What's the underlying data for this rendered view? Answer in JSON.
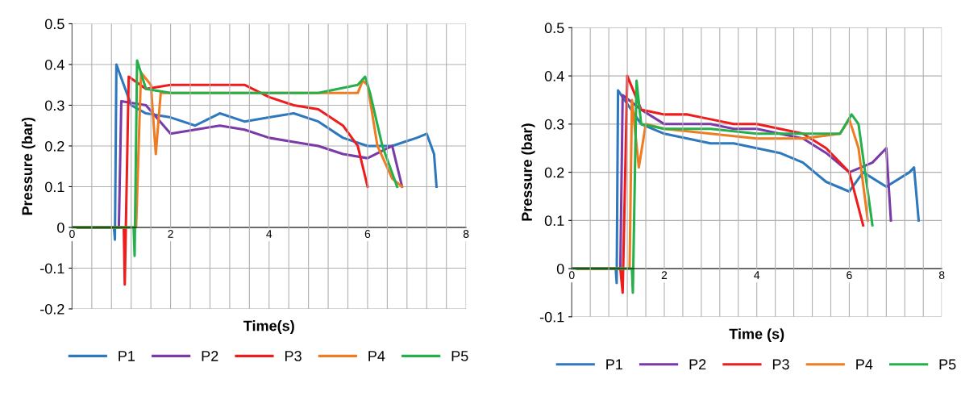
{
  "chart_data": [
    {
      "type": "line",
      "xlabel": "Time(s)",
      "ylabel": "Pressure (bar)",
      "xlim": [
        0,
        8
      ],
      "ylim": [
        -0.2,
        0.5
      ],
      "xticks": [
        0,
        {
          "value": 0.4,
          "label": null
        },
        {
          "value": 0.8,
          "label": null
        },
        {
          "value": 1.2,
          "label": null
        },
        {
          "value": 1.6,
          "label": null
        },
        2,
        {
          "value": 2.4,
          "label": null
        },
        {
          "value": 2.8,
          "label": null
        },
        {
          "value": 3.2,
          "label": null
        },
        {
          "value": 3.6,
          "label": null
        },
        4,
        {
          "value": 4.4,
          "label": null
        },
        {
          "value": 4.8,
          "label": null
        },
        {
          "value": 5.2,
          "label": null
        },
        {
          "value": 5.6,
          "label": null
        },
        6,
        {
          "value": 6.4,
          "label": null
        },
        {
          "value": 6.8,
          "label": null
        },
        {
          "value": 7.2,
          "label": null
        },
        {
          "value": 7.6,
          "label": null
        },
        8
      ],
      "yticks": [
        -0.2,
        -0.1,
        0,
        0.1,
        0.2,
        0.3,
        0.4,
        0.5
      ],
      "grid": true,
      "legend": "bottom",
      "marker": "none",
      "line_style": "solid",
      "series": [
        {
          "name": "P1",
          "color": "#2e78bd",
          "x": [
            0,
            0.85,
            0.87,
            0.9,
            1.2,
            1.5,
            2,
            2.5,
            3,
            3.5,
            4,
            4.5,
            5,
            5.5,
            6,
            6.5,
            7,
            7.2,
            7.35,
            7.4
          ],
          "values": [
            0,
            0,
            -0.03,
            0.4,
            0.3,
            0.28,
            0.27,
            0.25,
            0.28,
            0.26,
            0.27,
            0.28,
            0.26,
            0.22,
            0.2,
            0.2,
            0.22,
            0.23,
            0.18,
            0.1
          ]
        },
        {
          "name": "P2",
          "color": "#7a3aa8",
          "x": [
            0,
            0.95,
            1.0,
            1.5,
            2,
            2.5,
            3,
            3.5,
            4,
            4.5,
            5,
            5.5,
            6,
            6.5,
            6.7
          ],
          "values": [
            0,
            0,
            0.31,
            0.3,
            0.23,
            0.24,
            0.25,
            0.24,
            0.22,
            0.21,
            0.2,
            0.18,
            0.17,
            0.2,
            0.1
          ]
        },
        {
          "name": "P3",
          "color": "#ee1c1c",
          "x": [
            0,
            1.05,
            1.07,
            1.15,
            1.5,
            2,
            2.5,
            3,
            3.5,
            4,
            4.5,
            5,
            5.5,
            5.8,
            6
          ],
          "values": [
            0,
            0,
            -0.14,
            0.37,
            0.34,
            0.35,
            0.35,
            0.35,
            0.35,
            0.32,
            0.3,
            0.29,
            0.25,
            0.2,
            0.1
          ]
        },
        {
          "name": "P4",
          "color": "#f07c22",
          "x": [
            0,
            1.3,
            1.4,
            1.6,
            1.7,
            1.8,
            2,
            3,
            4,
            5,
            5.8,
            5.9,
            6.0,
            6.2,
            6.5,
            6.7
          ],
          "values": [
            0,
            0,
            0.38,
            0.35,
            0.18,
            0.33,
            0.33,
            0.33,
            0.33,
            0.33,
            0.33,
            0.36,
            0.35,
            0.2,
            0.12,
            0.1
          ]
        },
        {
          "name": "P5",
          "color": "#25b04b",
          "x": [
            0,
            1.25,
            1.27,
            1.32,
            1.5,
            2,
            3,
            4,
            5,
            5.8,
            5.95,
            6.05,
            6.3,
            6.6
          ],
          "values": [
            0,
            0,
            -0.07,
            0.41,
            0.34,
            0.33,
            0.33,
            0.33,
            0.33,
            0.35,
            0.37,
            0.33,
            0.2,
            0.1
          ]
        }
      ]
    },
    {
      "type": "line",
      "xlabel": "Time (s)",
      "ylabel": "Pressure (bar)",
      "xlim": [
        0,
        8
      ],
      "ylim": [
        -0.1,
        0.5
      ],
      "xticks": [
        0,
        {
          "value": 0.4,
          "label": null
        },
        {
          "value": 0.8,
          "label": null
        },
        {
          "value": 1.2,
          "label": null
        },
        {
          "value": 1.6,
          "label": null
        },
        2,
        {
          "value": 2.4,
          "label": null
        },
        {
          "value": 2.8,
          "label": null
        },
        {
          "value": 3.2,
          "label": null
        },
        {
          "value": 3.6,
          "label": null
        },
        4,
        {
          "value": 4.4,
          "label": null
        },
        {
          "value": 4.8,
          "label": null
        },
        {
          "value": 5.2,
          "label": null
        },
        {
          "value": 5.6,
          "label": null
        },
        6,
        {
          "value": 6.4,
          "label": null
        },
        {
          "value": 6.8,
          "label": null
        },
        {
          "value": 7.2,
          "label": null
        },
        {
          "value": 7.6,
          "label": null
        },
        8
      ],
      "yticks": [
        -0.1,
        0,
        0.1,
        0.2,
        0.3,
        0.4,
        0.5
      ],
      "grid": true,
      "legend": "bottom",
      "marker": "none",
      "line_style": "solid",
      "series": [
        {
          "name": "P1",
          "color": "#2e78bd",
          "x": [
            0,
            0.95,
            0.97,
            1.0,
            1.5,
            2,
            2.5,
            3,
            3.5,
            4,
            4.5,
            5,
            5.5,
            6,
            6.3,
            6.8,
            7.3,
            7.4,
            7.5
          ],
          "values": [
            0,
            0,
            -0.03,
            0.37,
            0.3,
            0.28,
            0.27,
            0.26,
            0.26,
            0.25,
            0.24,
            0.22,
            0.18,
            0.16,
            0.2,
            0.17,
            0.2,
            0.21,
            0.1
          ]
        },
        {
          "name": "P2",
          "color": "#7a3aa8",
          "x": [
            0,
            1.05,
            1.1,
            1.5,
            2,
            2.5,
            3,
            3.5,
            4,
            4.5,
            5,
            5.5,
            6,
            6.5,
            6.8,
            6.9
          ],
          "values": [
            0,
            0,
            0.36,
            0.33,
            0.3,
            0.3,
            0.3,
            0.29,
            0.29,
            0.28,
            0.27,
            0.24,
            0.2,
            0.22,
            0.25,
            0.1
          ]
        },
        {
          "name": "P3",
          "color": "#ee1c1c",
          "x": [
            0,
            1.05,
            1.1,
            1.2,
            1.5,
            2,
            2.5,
            3,
            3.5,
            4,
            4.5,
            5,
            5.5,
            6,
            6.3
          ],
          "values": [
            0,
            0,
            -0.05,
            0.4,
            0.33,
            0.32,
            0.32,
            0.31,
            0.3,
            0.3,
            0.29,
            0.28,
            0.25,
            0.2,
            0.09
          ]
        },
        {
          "name": "P4",
          "color": "#f07c22",
          "x": [
            0,
            1.25,
            1.3,
            1.45,
            1.6,
            2,
            3,
            4,
            5,
            5.8,
            6,
            6.2,
            6.4
          ],
          "values": [
            0,
            0,
            0.35,
            0.21,
            0.3,
            0.29,
            0.28,
            0.27,
            0.27,
            0.28,
            0.31,
            0.25,
            0.1
          ]
        },
        {
          "name": "P5",
          "color": "#25b04b",
          "x": [
            0,
            1.3,
            1.32,
            1.4,
            1.5,
            2,
            3,
            4,
            5,
            5.8,
            6.05,
            6.2,
            6.5
          ],
          "values": [
            0,
            0,
            -0.05,
            0.39,
            0.3,
            0.29,
            0.29,
            0.28,
            0.28,
            0.28,
            0.32,
            0.3,
            0.09
          ]
        }
      ]
    }
  ]
}
